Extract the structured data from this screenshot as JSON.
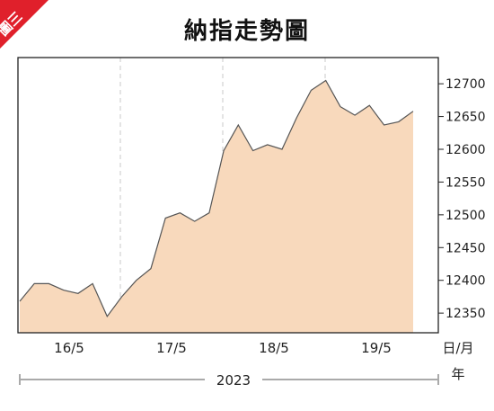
{
  "badge": {
    "text": "圖三",
    "color": "#e0202b"
  },
  "chart_data": {
    "type": "area",
    "title": "納指走勢圖",
    "xlabel_unit": "日/月",
    "year_unit": "年",
    "year_label": "2023",
    "ylim": [
      12320,
      12740
    ],
    "yticks": [
      12350,
      12400,
      12450,
      12500,
      12550,
      12600,
      12650,
      12700
    ],
    "x_day_labels": [
      "16/5",
      "17/5",
      "18/5",
      "19/5"
    ],
    "grid": "vertical-dashed",
    "fill_color": "#f8d9bc",
    "line_color": "#555555",
    "series": [
      {
        "values": [
          12368,
          12395,
          12395,
          12385,
          12380,
          12395,
          12345,
          12375,
          12400,
          12418,
          12495,
          12503,
          12490,
          12503,
          12598,
          12637,
          12598,
          12607,
          12600,
          12648,
          12690,
          12705,
          12665,
          12652,
          12667,
          12637,
          12642,
          12658
        ]
      }
    ]
  }
}
